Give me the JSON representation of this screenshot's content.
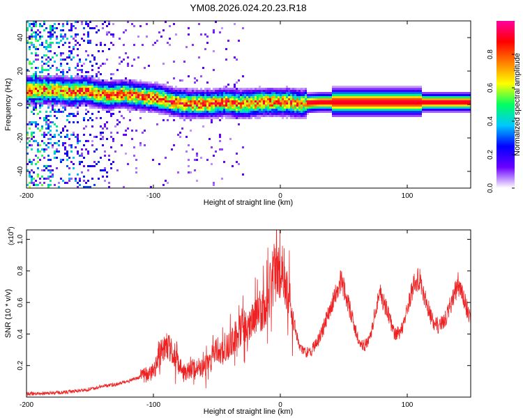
{
  "title": "YM08.2026.024.20.23.R18",
  "chart_data": [
    {
      "type": "heatmap",
      "name": "spectrogram",
      "xlabel": "Height of straight line (km)",
      "ylabel": "Frequency (Hz)",
      "xlim": [
        -200,
        150
      ],
      "ylim": [
        -50,
        50
      ],
      "xticks": [
        -200,
        -100,
        0,
        100
      ],
      "xtick_labels": [
        "-200",
        "-100",
        "0",
        "100"
      ],
      "yticks": [
        -40,
        -20,
        0,
        20,
        40
      ],
      "ytick_labels": [
        "-40",
        "-20",
        "0",
        "20",
        "40"
      ],
      "ridge": {
        "x": [
          -185,
          -175,
          -165,
          -155,
          -145,
          -135,
          -125,
          -115,
          -105,
          -95,
          -85,
          -75,
          -65,
          -55,
          -45,
          -35,
          -25,
          -15,
          -5,
          5,
          15,
          30,
          60,
          90,
          120,
          150
        ],
        "freq": [
          9,
          9,
          8,
          9,
          7,
          6,
          7,
          6,
          5,
          4,
          2,
          1,
          1,
          1,
          2,
          1,
          1,
          2,
          2,
          2,
          1,
          2,
          2,
          2,
          2,
          2
        ]
      },
      "colorbar": {
        "label": "Normalized spectral amplitude",
        "range": [
          0,
          1
        ],
        "ticks": [
          0,
          0.2,
          0.4,
          0.6,
          0.8
        ],
        "tick_labels": [
          "0.0",
          "0.2",
          "0.4",
          "0.6",
          "0.8"
        ],
        "colormap": [
          "#ffffff",
          "#6a00ff",
          "#0000ff",
          "#00c8ff",
          "#00ff60",
          "#ffff00",
          "#ff8000",
          "#ff0000",
          "#ff00a0"
        ]
      }
    },
    {
      "type": "line",
      "name": "snr",
      "xlabel": "Height of straight line (km)",
      "ylabel": "SNR (10 * v/v)",
      "yscale_label": "(x10",
      "yscale_exp": "4",
      "yscale_close": ")",
      "xlim": [
        -200,
        150
      ],
      "ylim": [
        0,
        1.06
      ],
      "xticks": [
        -200,
        -100,
        0,
        100
      ],
      "xtick_labels": [
        "-200",
        "-100",
        "0",
        "100"
      ],
      "yticks": [
        0.2,
        0.4,
        0.6,
        0.8,
        1.0
      ],
      "ytick_labels": [
        "0.2",
        "0.4",
        "0.6",
        "0.8",
        "1.0"
      ],
      "color": "#ee2222",
      "x": [
        -200,
        -170,
        -150,
        -140,
        -130,
        -120,
        -110,
        -100,
        -95,
        -90,
        -85,
        -80,
        -75,
        -70,
        -65,
        -60,
        -55,
        -50,
        -45,
        -40,
        -35,
        -30,
        -25,
        -20,
        -15,
        -10,
        -5,
        0,
        5,
        10,
        15,
        20,
        25,
        30,
        35,
        40,
        45,
        48,
        55,
        60,
        65,
        70,
        75,
        78,
        85,
        90,
        95,
        100,
        105,
        110,
        115,
        120,
        125,
        130,
        135,
        140,
        145,
        150
      ],
      "values": [
        0.02,
        0.03,
        0.05,
        0.07,
        0.08,
        0.1,
        0.13,
        0.16,
        0.27,
        0.35,
        0.28,
        0.2,
        0.15,
        0.18,
        0.2,
        0.18,
        0.22,
        0.3,
        0.28,
        0.32,
        0.4,
        0.45,
        0.42,
        0.52,
        0.55,
        0.62,
        0.78,
        0.82,
        0.72,
        0.5,
        0.32,
        0.28,
        0.3,
        0.36,
        0.46,
        0.58,
        0.68,
        0.75,
        0.55,
        0.4,
        0.32,
        0.35,
        0.55,
        0.68,
        0.52,
        0.4,
        0.42,
        0.55,
        0.72,
        0.75,
        0.6,
        0.48,
        0.45,
        0.5,
        0.6,
        0.72,
        0.62,
        0.48
      ]
    }
  ]
}
